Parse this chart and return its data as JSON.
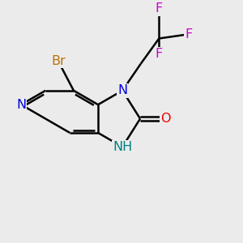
{
  "background_color": "#ebebeb",
  "figsize": [
    3.0,
    3.0
  ],
  "dpi": 100,
  "colors": {
    "bond": "#000000",
    "N": "#0000dd",
    "NH": "#008080",
    "O": "#ee0000",
    "Br": "#b8720b",
    "F": "#cc00cc",
    "C": "#000000"
  }
}
